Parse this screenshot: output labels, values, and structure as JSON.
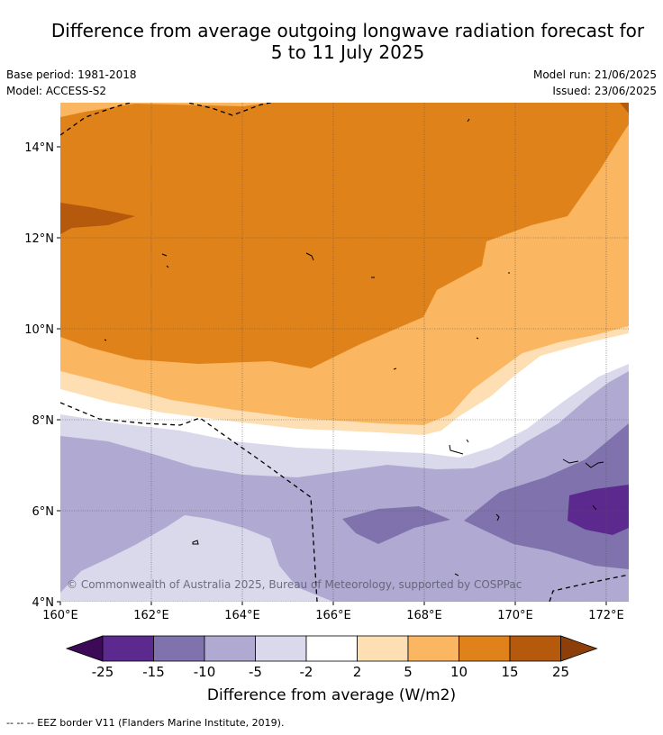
{
  "title": {
    "line1": "Difference from average outgoing longwave radiation forecast for",
    "line2": "5 to 11 July 2025"
  },
  "meta": {
    "base_period": "Base period: 1981-2018",
    "model": "Model: ACCESS-S2",
    "model_run": "Model run: 21/06/2025",
    "issued": "Issued: 23/06/2025"
  },
  "map": {
    "x_ticks": [
      "160°E",
      "162°E",
      "164°E",
      "166°E",
      "168°E",
      "170°E",
      "172°E"
    ],
    "y_ticks": [
      "14°N",
      "12°N",
      "10°N",
      "8°N",
      "6°N",
      "4°N"
    ],
    "copyright": "© Commonwealth of Australia 2025, Bureau of Meteorology, supported by COSPPac"
  },
  "colorbar": {
    "tick_labels": [
      "-25",
      "-15",
      "-10",
      "-5",
      "-2",
      "2",
      "5",
      "10",
      "15",
      "25"
    ],
    "colors": [
      "#3d0a58",
      "#5c2a8e",
      "#8073ad",
      "#b0aad2",
      "#d9d9eb",
      "#ffffff",
      "#fddfb3",
      "#fbb661",
      "#e0821a",
      "#b5590c",
      "#8c3f08"
    ],
    "label": "Difference from average (W/m2)"
  },
  "legend": {
    "eez_text": "-- -- -- EEZ border V11 (Flanders Marine Institute, 2019)."
  }
}
